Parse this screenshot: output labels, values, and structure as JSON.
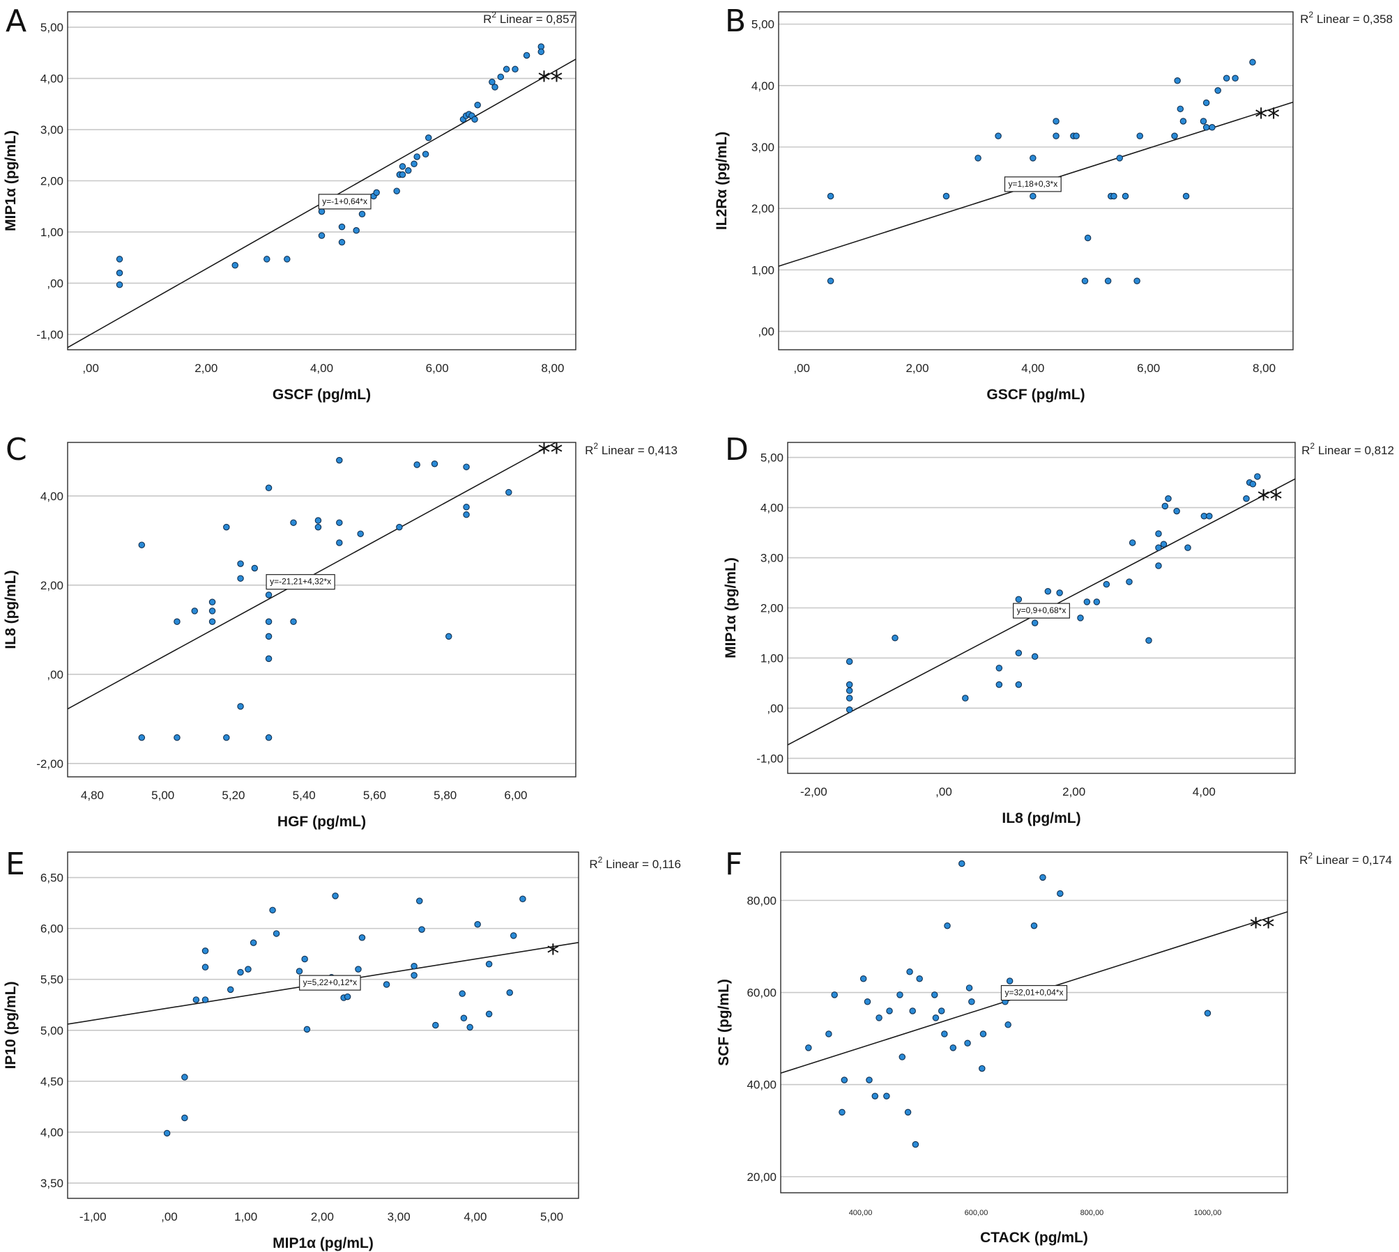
{
  "chart_data": [
    {
      "type": "scatter",
      "panel": "A",
      "xlabel": "GSCF (pg/mL)",
      "ylabel": "MIP1α (pg/mL)",
      "r2_text": "Linear = 0,857",
      "equation": "y=-1+0,64*x",
      "significance": "**",
      "xlim": [
        -0.4,
        8.4
      ],
      "ylim": [
        -1.3,
        5.3
      ],
      "xticks": [
        0,
        2,
        4,
        6,
        8
      ],
      "xtick_labels": [
        ",00",
        "2,00",
        "4,00",
        "6,00",
        "8,00"
      ],
      "yticks": [
        -1,
        0,
        1,
        2,
        3,
        4,
        5
      ],
      "ytick_labels": [
        "-1,00",
        ",00",
        "1,00",
        "2,00",
        "3,00",
        "4,00",
        "5,00"
      ],
      "fit": {
        "intercept": -1,
        "slope": 0.64
      },
      "points": [
        [
          0.5,
          0.47
        ],
        [
          0.5,
          0.2
        ],
        [
          0.5,
          -0.03
        ],
        [
          2.5,
          0.35
        ],
        [
          3.05,
          0.47
        ],
        [
          3.4,
          0.47
        ],
        [
          4.0,
          0.93
        ],
        [
          4.0,
          1.4
        ],
        [
          4.35,
          0.8
        ],
        [
          4.35,
          1.1
        ],
        [
          4.6,
          1.03
        ],
        [
          4.7,
          1.35
        ],
        [
          4.9,
          1.7
        ],
        [
          4.95,
          1.77
        ],
        [
          5.3,
          1.8
        ],
        [
          5.35,
          2.12
        ],
        [
          5.4,
          2.12
        ],
        [
          5.4,
          2.28
        ],
        [
          5.5,
          2.2
        ],
        [
          5.6,
          2.33
        ],
        [
          5.65,
          2.47
        ],
        [
          5.8,
          2.52
        ],
        [
          5.85,
          2.84
        ],
        [
          6.45,
          3.2
        ],
        [
          6.5,
          3.27
        ],
        [
          6.55,
          3.3
        ],
        [
          6.6,
          3.27
        ],
        [
          6.65,
          3.2
        ],
        [
          6.7,
          3.48
        ],
        [
          6.95,
          3.93
        ],
        [
          7.0,
          3.83
        ],
        [
          7.1,
          4.03
        ],
        [
          7.2,
          4.18
        ],
        [
          7.35,
          4.18
        ],
        [
          7.55,
          4.45
        ],
        [
          7.8,
          4.62
        ],
        [
          7.8,
          4.52
        ]
      ]
    },
    {
      "type": "scatter",
      "panel": "B",
      "xlabel": "GSCF (pg/mL)",
      "ylabel": "IL2Rα (pg/mL)",
      "r2_text": "Linear = 0,358",
      "equation": "y=1,18+0,3*x",
      "significance": "**",
      "xlim": [
        -0.4,
        8.5
      ],
      "ylim": [
        -0.3,
        5.2
      ],
      "xticks": [
        0,
        2,
        4,
        6,
        8
      ],
      "xtick_labels": [
        ",00",
        "2,00",
        "4,00",
        "6,00",
        "8,00"
      ],
      "yticks": [
        0,
        1,
        2,
        3,
        4,
        5
      ],
      "ytick_labels": [
        ",00",
        "1,00",
        "2,00",
        "3,00",
        "4,00",
        "5,00"
      ],
      "fit": {
        "intercept": 1.18,
        "slope": 0.3
      },
      "points": [
        [
          0.5,
          2.2
        ],
        [
          0.5,
          0.82
        ],
        [
          2.5,
          2.2
        ],
        [
          3.05,
          2.82
        ],
        [
          3.4,
          3.18
        ],
        [
          4.0,
          2.82
        ],
        [
          4.0,
          2.2
        ],
        [
          4.4,
          3.42
        ],
        [
          4.4,
          3.18
        ],
        [
          4.7,
          3.18
        ],
        [
          4.75,
          3.18
        ],
        [
          4.9,
          0.82
        ],
        [
          4.95,
          1.52
        ],
        [
          5.3,
          0.82
        ],
        [
          5.35,
          2.2
        ],
        [
          5.4,
          2.2
        ],
        [
          5.5,
          2.82
        ],
        [
          5.6,
          2.2
        ],
        [
          5.8,
          0.82
        ],
        [
          5.85,
          3.18
        ],
        [
          6.45,
          3.18
        ],
        [
          6.5,
          4.08
        ],
        [
          6.55,
          3.62
        ],
        [
          6.6,
          3.42
        ],
        [
          6.65,
          2.2
        ],
        [
          6.95,
          3.42
        ],
        [
          7.0,
          3.72
        ],
        [
          7.0,
          3.32
        ],
        [
          7.1,
          3.32
        ],
        [
          7.2,
          3.92
        ],
        [
          7.35,
          4.12
        ],
        [
          7.5,
          4.12
        ],
        [
          7.8,
          4.38
        ]
      ]
    },
    {
      "type": "scatter",
      "panel": "C",
      "xlabel": "HGF (pg/mL)",
      "ylabel": "IL8 (pg/mL)",
      "r2_text": "Linear = 0,413",
      "equation": "y=-21,21+4,32*x",
      "significance": "**",
      "xlim": [
        4.73,
        6.17
      ],
      "ylim": [
        -2.3,
        5.2
      ],
      "xticks": [
        4.8,
        5.0,
        5.2,
        5.4,
        5.6,
        5.8,
        6.0
      ],
      "xtick_labels": [
        "4,80",
        "5,00",
        "5,20",
        "5,40",
        "5,60",
        "5,80",
        "6,00"
      ],
      "yticks": [
        -2,
        0,
        2,
        4
      ],
      "ytick_labels": [
        "-2,00",
        ",00",
        "2,00",
        "4,00"
      ],
      "fit": {
        "intercept": -21.21,
        "slope": 4.32
      },
      "points": [
        [
          4.94,
          2.9
        ],
        [
          4.94,
          -1.42
        ],
        [
          5.04,
          1.18
        ],
        [
          5.04,
          -1.42
        ],
        [
          5.09,
          1.42
        ],
        [
          5.14,
          1.62
        ],
        [
          5.14,
          1.42
        ],
        [
          5.14,
          1.18
        ],
        [
          5.18,
          3.3
        ],
        [
          5.18,
          -1.42
        ],
        [
          5.22,
          2.48
        ],
        [
          5.22,
          2.15
        ],
        [
          5.22,
          -0.72
        ],
        [
          5.26,
          2.38
        ],
        [
          5.3,
          4.18
        ],
        [
          5.3,
          1.78
        ],
        [
          5.3,
          1.18
        ],
        [
          5.3,
          0.85
        ],
        [
          5.3,
          0.35
        ],
        [
          5.3,
          -1.42
        ],
        [
          5.37,
          3.4
        ],
        [
          5.37,
          1.18
        ],
        [
          5.44,
          3.45
        ],
        [
          5.44,
          3.3
        ],
        [
          5.5,
          4.8
        ],
        [
          5.5,
          3.4
        ],
        [
          5.5,
          2.95
        ],
        [
          5.56,
          3.15
        ],
        [
          5.67,
          3.3
        ],
        [
          5.72,
          4.7
        ],
        [
          5.77,
          4.72
        ],
        [
          5.81,
          0.85
        ],
        [
          5.86,
          4.65
        ],
        [
          5.86,
          3.75
        ],
        [
          5.86,
          3.58
        ],
        [
          5.98,
          4.08
        ]
      ]
    },
    {
      "type": "scatter",
      "panel": "D",
      "xlabel": "IL8 (pg/mL)",
      "ylabel": "MIP1α (pg/mL)",
      "r2_text": "Linear = 0,812",
      "equation": "y=0,9+0,68*x",
      "significance": "**",
      "xlim": [
        -2.4,
        5.4
      ],
      "ylim": [
        -1.3,
        5.3
      ],
      "xticks": [
        -2,
        0,
        2,
        4
      ],
      "xtick_labels": [
        "-2,00",
        ",00",
        "2,00",
        "4,00"
      ],
      "yticks": [
        -1,
        0,
        1,
        2,
        3,
        4,
        5
      ],
      "ytick_labels": [
        "-1,00",
        ",00",
        "1,00",
        "2,00",
        "3,00",
        "4,00",
        "5,00"
      ],
      "fit": {
        "intercept": 0.9,
        "slope": 0.68
      },
      "points": [
        [
          -1.45,
          0.93
        ],
        [
          -1.45,
          0.47
        ],
        [
          -1.45,
          0.35
        ],
        [
          -1.45,
          0.2
        ],
        [
          -1.45,
          -0.03
        ],
        [
          -0.75,
          1.4
        ],
        [
          0.33,
          0.2
        ],
        [
          0.85,
          0.8
        ],
        [
          0.85,
          0.47
        ],
        [
          1.15,
          2.17
        ],
        [
          1.15,
          1.1
        ],
        [
          1.15,
          0.47
        ],
        [
          1.4,
          1.7
        ],
        [
          1.4,
          1.03
        ],
        [
          1.6,
          2.33
        ],
        [
          1.78,
          2.3
        ],
        [
          2.1,
          1.8
        ],
        [
          2.2,
          2.12
        ],
        [
          2.35,
          2.12
        ],
        [
          2.5,
          2.47
        ],
        [
          2.85,
          2.52
        ],
        [
          2.9,
          3.3
        ],
        [
          3.15,
          1.35
        ],
        [
          3.3,
          3.48
        ],
        [
          3.3,
          3.2
        ],
        [
          3.3,
          2.84
        ],
        [
          3.38,
          3.27
        ],
        [
          3.4,
          4.03
        ],
        [
          3.45,
          4.18
        ],
        [
          3.58,
          3.93
        ],
        [
          3.75,
          3.2
        ],
        [
          4.0,
          3.83
        ],
        [
          4.08,
          3.83
        ],
        [
          4.65,
          4.18
        ],
        [
          4.7,
          4.5
        ],
        [
          4.75,
          4.47
        ],
        [
          4.82,
          4.62
        ]
      ]
    },
    {
      "type": "scatter",
      "panel": "E",
      "xlabel": "MIP1α (pg/mL)",
      "ylabel": "IP10 (pg/mL)",
      "r2_text": "Linear = 0,116",
      "equation": "y=5,22+0,12*x",
      "significance": "*",
      "xlim": [
        -1.33,
        5.35
      ],
      "ylim": [
        3.35,
        6.75
      ],
      "xticks": [
        -1,
        0,
        1,
        2,
        3,
        4,
        5
      ],
      "xtick_labels": [
        "-1,00",
        ",00",
        "1,00",
        "2,00",
        "3,00",
        "4,00",
        "5,00"
      ],
      "yticks": [
        3.5,
        4.0,
        4.5,
        5.0,
        5.5,
        6.0,
        6.5
      ],
      "ytick_labels": [
        "3,50",
        "4,00",
        "4,50",
        "5,00",
        "5,50",
        "6,00",
        "6,50"
      ],
      "fit": {
        "intercept": 5.22,
        "slope": 0.12
      },
      "points": [
        [
          -0.03,
          3.99
        ],
        [
          0.2,
          4.14
        ],
        [
          0.2,
          4.54
        ],
        [
          0.35,
          5.3
        ],
        [
          0.47,
          5.78
        ],
        [
          0.47,
          5.62
        ],
        [
          0.47,
          5.3
        ],
        [
          0.8,
          5.4
        ],
        [
          0.93,
          5.57
        ],
        [
          1.03,
          5.6
        ],
        [
          1.1,
          5.86
        ],
        [
          1.35,
          6.18
        ],
        [
          1.4,
          5.95
        ],
        [
          1.7,
          5.58
        ],
        [
          1.77,
          5.7
        ],
        [
          1.8,
          5.01
        ],
        [
          2.12,
          5.52
        ],
        [
          2.17,
          6.32
        ],
        [
          2.28,
          5.32
        ],
        [
          2.33,
          5.33
        ],
        [
          2.47,
          5.6
        ],
        [
          2.52,
          5.91
        ],
        [
          2.84,
          5.45
        ],
        [
          3.2,
          5.63
        ],
        [
          3.2,
          5.54
        ],
        [
          3.27,
          6.27
        ],
        [
          3.3,
          5.99
        ],
        [
          3.48,
          5.05
        ],
        [
          3.83,
          5.36
        ],
        [
          3.85,
          5.12
        ],
        [
          3.93,
          5.03
        ],
        [
          4.03,
          6.04
        ],
        [
          4.18,
          5.65
        ],
        [
          4.18,
          5.16
        ],
        [
          4.45,
          5.37
        ],
        [
          4.5,
          5.93
        ],
        [
          4.62,
          6.29
        ]
      ]
    },
    {
      "type": "scatter",
      "panel": "F",
      "xlabel": "CTACK (pg/mL)",
      "ylabel": "SCF (pg/mL)",
      "r2_text": "Linear = 0,174",
      "equation": "y=32,01+0,04*x",
      "significance": "**",
      "xlim": [
        262,
        1138
      ],
      "ylim": [
        16.5,
        90.5
      ],
      "xticks": [
        400,
        600,
        800,
        1000
      ],
      "xtick_labels": [
        "400,00",
        "600,00",
        "800,00",
        "1000,00"
      ],
      "yticks": [
        20,
        40,
        60,
        80
      ],
      "ytick_labels": [
        "20,00",
        "40,00",
        "60,00",
        "80,00"
      ],
      "fit": {
        "intercept": 32.01,
        "slope": 0.04
      },
      "points": [
        [
          310,
          48
        ],
        [
          345,
          51
        ],
        [
          355,
          59.5
        ],
        [
          368,
          34
        ],
        [
          372,
          41
        ],
        [
          405,
          63
        ],
        [
          412,
          58
        ],
        [
          415,
          41
        ],
        [
          425,
          37.5
        ],
        [
          432,
          54.5
        ],
        [
          445,
          37.5
        ],
        [
          450,
          56
        ],
        [
          468,
          59.5
        ],
        [
          472,
          46
        ],
        [
          482,
          34
        ],
        [
          485,
          64.5
        ],
        [
          490,
          56
        ],
        [
          495,
          27
        ],
        [
          502,
          63
        ],
        [
          528,
          59.5
        ],
        [
          530,
          54.5
        ],
        [
          540,
          56
        ],
        [
          545,
          51
        ],
        [
          550,
          74.5
        ],
        [
          560,
          48
        ],
        [
          575,
          88
        ],
        [
          585,
          49
        ],
        [
          588,
          61
        ],
        [
          592,
          58
        ],
        [
          610,
          43.5
        ],
        [
          612,
          51
        ],
        [
          650,
          58
        ],
        [
          655,
          53
        ],
        [
          658,
          62.5
        ],
        [
          700,
          74.5
        ],
        [
          715,
          85
        ],
        [
          745,
          81.5
        ],
        [
          1000,
          55.5
        ]
      ]
    }
  ]
}
